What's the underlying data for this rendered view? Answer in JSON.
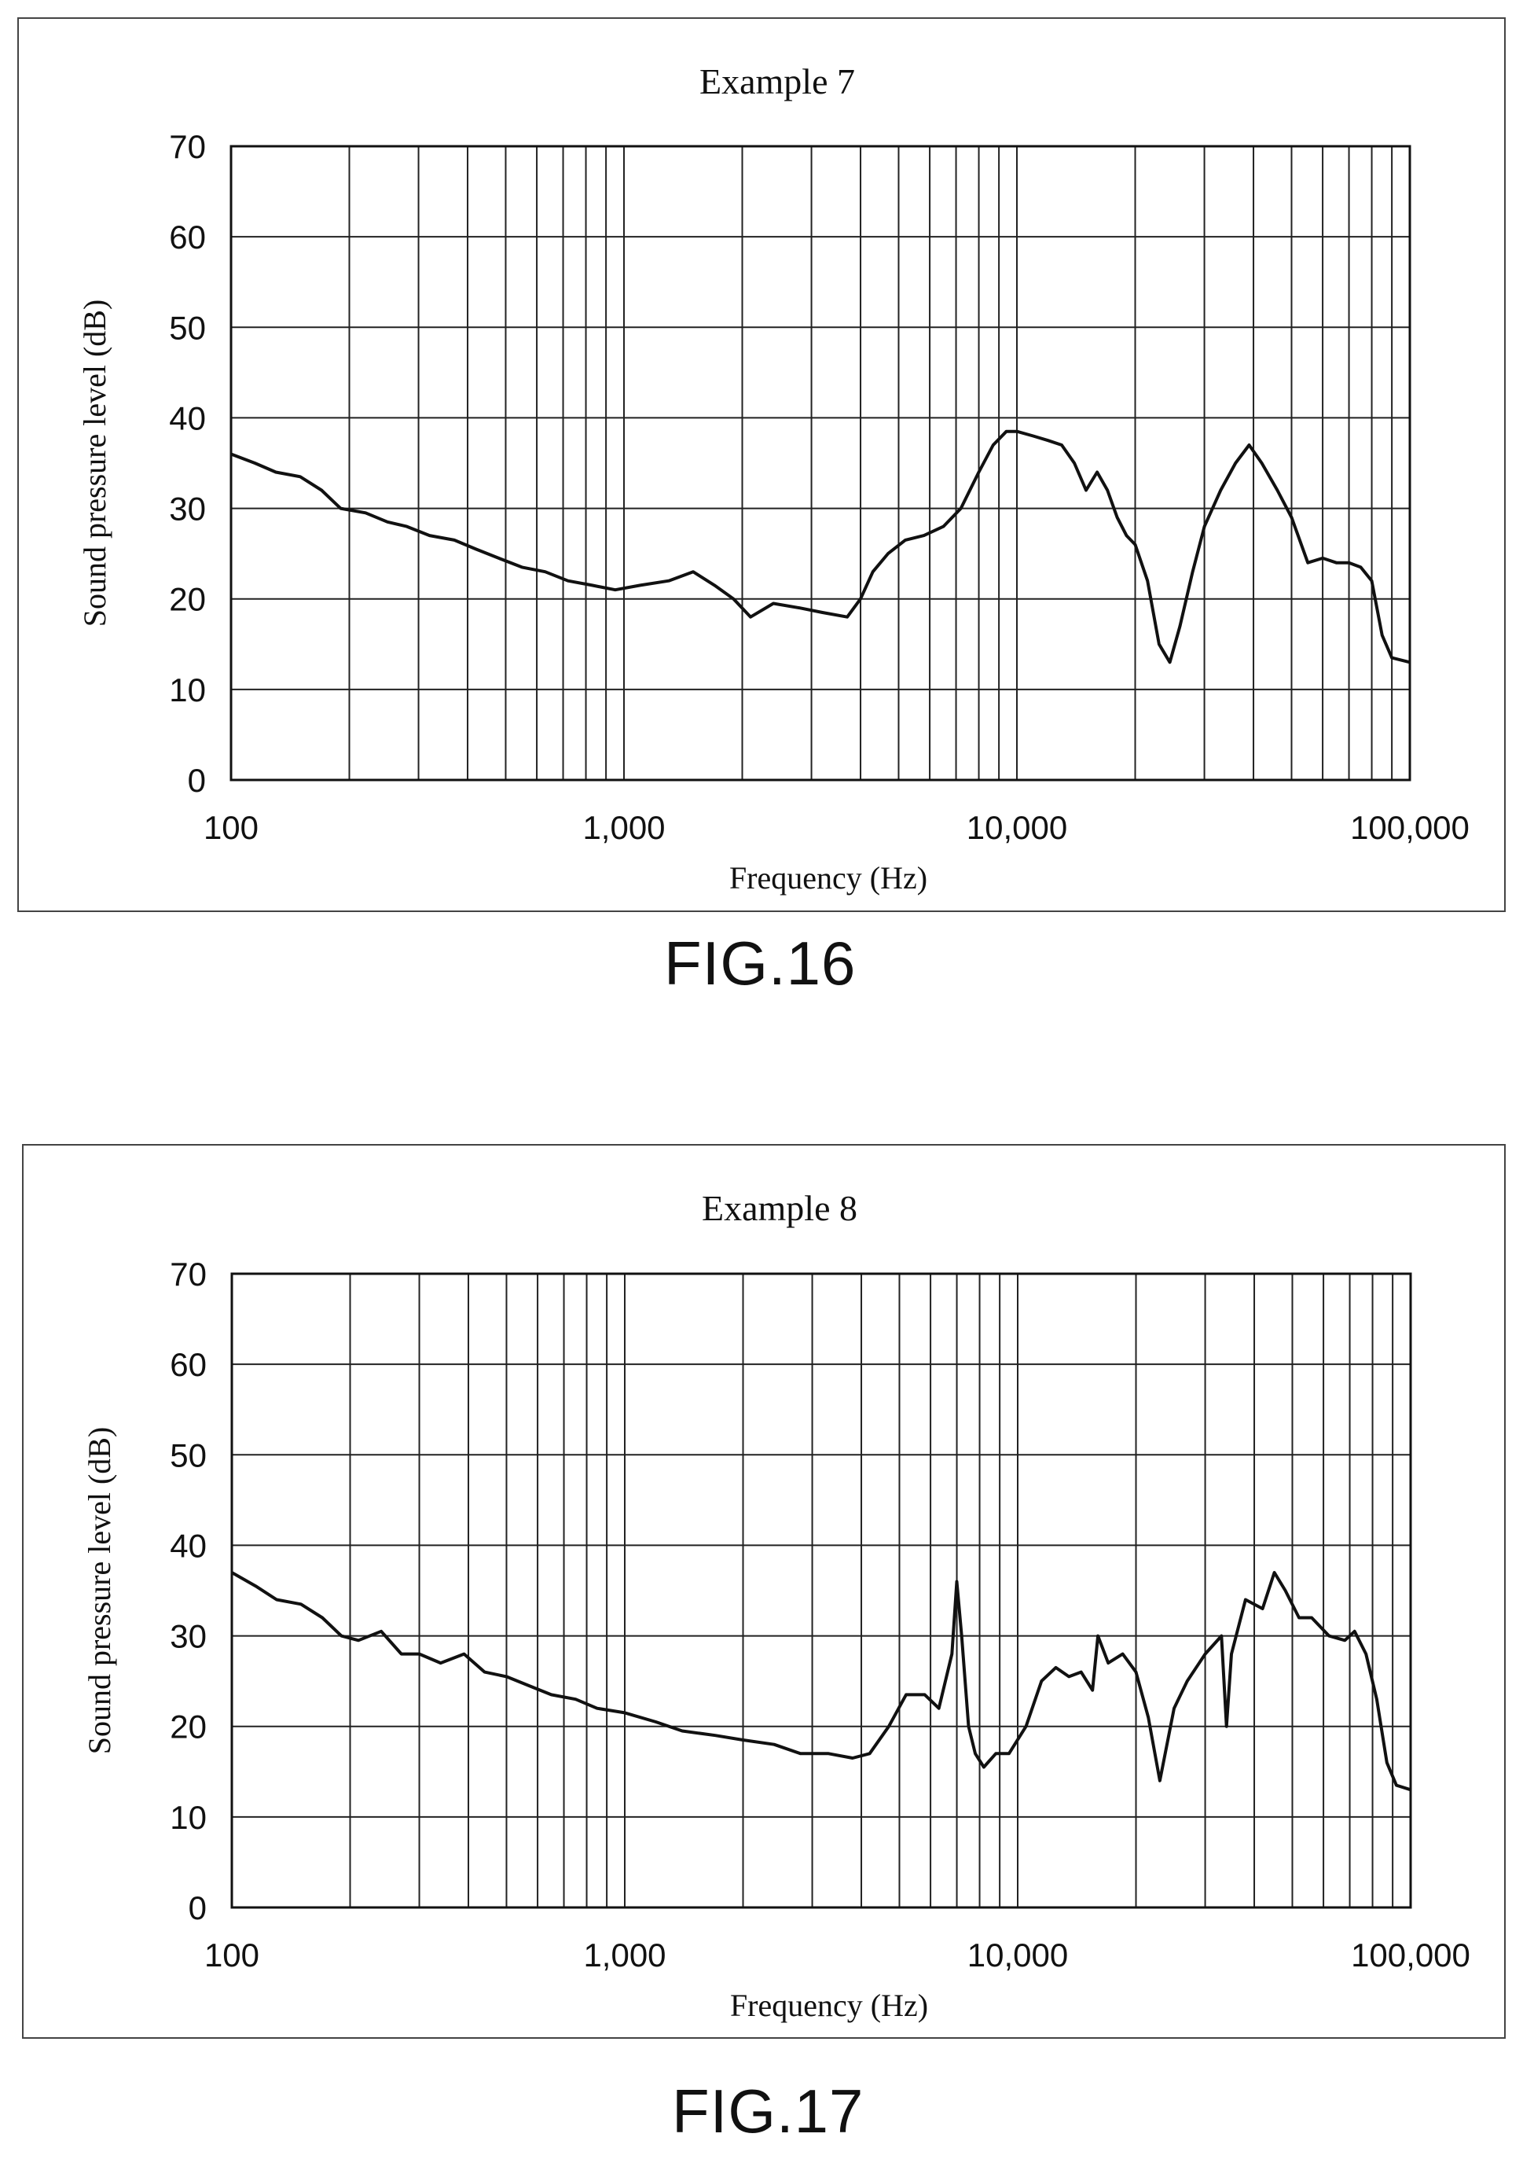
{
  "chart_data": [
    {
      "type": "line",
      "title": "Example 7",
      "xlabel": "Frequency (Hz)",
      "ylabel": "Sound pressure level (dB)",
      "xscale": "log",
      "xlim": [
        100,
        100000
      ],
      "ylim": [
        0,
        70
      ],
      "xticks": [
        100,
        1000,
        10000,
        100000
      ],
      "xtick_labels": [
        "100",
        "1,000",
        "10,000",
        "100,000"
      ],
      "yticks": [
        0,
        10,
        20,
        30,
        40,
        50,
        60,
        70
      ],
      "ytick_labels": [
        "0",
        "10",
        "20",
        "30",
        "40",
        "50",
        "60",
        "70"
      ],
      "grid": true,
      "series": [
        {
          "x": [
            100,
            115,
            130,
            150,
            170,
            190,
            220,
            250,
            280,
            320,
            370,
            420,
            480,
            550,
            630,
            720,
            830,
            950,
            1100,
            1300,
            1500,
            1700,
            1900,
            2100,
            2400,
            2800,
            3200,
            3700,
            4000,
            4300,
            4700,
            5200,
            5800,
            6500,
            7200,
            8000,
            8700,
            9400,
            10000,
            11000,
            12000,
            13000,
            14000,
            15000,
            16000,
            17000,
            18000,
            19000,
            20000,
            21500,
            23000,
            24500,
            26000,
            28000,
            30000,
            33000,
            36000,
            39000,
            42000,
            46000,
            50000,
            55000,
            60000,
            65000,
            70000,
            75000,
            80000,
            85000,
            90000,
            100000
          ],
          "y": [
            36,
            35,
            34,
            33.5,
            32,
            30,
            29.5,
            28.5,
            28,
            27,
            26.5,
            25.5,
            24.5,
            23.5,
            23,
            22,
            21.5,
            21,
            21.5,
            22,
            23,
            21.5,
            20,
            18,
            19.5,
            19,
            18.5,
            18,
            20,
            23,
            25,
            26.5,
            27,
            28,
            30,
            34,
            37,
            38.5,
            38.5,
            38,
            37.5,
            37,
            35,
            32,
            34,
            32,
            29,
            27,
            26,
            22,
            15,
            13,
            17,
            23,
            28,
            32,
            35,
            37,
            35,
            32,
            29,
            24,
            24.5,
            24,
            24,
            23.5,
            22,
            16,
            13.5,
            13
          ]
        }
      ]
    },
    {
      "type": "line",
      "title": "Example 8",
      "xlabel": "Frequency (Hz)",
      "ylabel": "Sound pressure level (dB)",
      "xscale": "log",
      "xlim": [
        100,
        100000
      ],
      "ylim": [
        0,
        70
      ],
      "xticks": [
        100,
        1000,
        10000,
        100000
      ],
      "xtick_labels": [
        "100",
        "1,000",
        "10,000",
        "100,000"
      ],
      "yticks": [
        0,
        10,
        20,
        30,
        40,
        50,
        60,
        70
      ],
      "ytick_labels": [
        "0",
        "10",
        "20",
        "30",
        "40",
        "50",
        "60",
        "70"
      ],
      "grid": true,
      "series": [
        {
          "x": [
            100,
            115,
            130,
            150,
            170,
            190,
            210,
            240,
            270,
            300,
            340,
            390,
            440,
            500,
            570,
            650,
            750,
            850,
            1000,
            1200,
            1400,
            1700,
            2000,
            2400,
            2800,
            3300,
            3800,
            4200,
            4700,
            5200,
            5800,
            6300,
            6800,
            7000,
            7200,
            7500,
            7800,
            8200,
            8800,
            9500,
            10500,
            11500,
            12500,
            13500,
            14500,
            15500,
            16000,
            17000,
            18500,
            20000,
            21500,
            23000,
            25000,
            27000,
            30000,
            33000,
            34000,
            35000,
            38000,
            42000,
            45000,
            48000,
            52000,
            56000,
            62000,
            68000,
            72000,
            77000,
            82000,
            87000,
            92000,
            100000
          ],
          "y": [
            37,
            35.5,
            34,
            33.5,
            32,
            30,
            29.5,
            30.5,
            28,
            28,
            27,
            28,
            26,
            25.5,
            24.5,
            23.5,
            23,
            22,
            21.5,
            20.5,
            19.5,
            19,
            18.5,
            18,
            17,
            17,
            16.5,
            17,
            20,
            23.5,
            23.5,
            22,
            28,
            36,
            30,
            20,
            17,
            15.5,
            17,
            17,
            20,
            25,
            26.5,
            25.5,
            26,
            24,
            30,
            27,
            28,
            26,
            21,
            14,
            22,
            25,
            28,
            30,
            20,
            28,
            34,
            33,
            37,
            35,
            32,
            32,
            30,
            29.5,
            30.5,
            28,
            23,
            16,
            13.5,
            13
          ]
        }
      ]
    }
  ],
  "captions": [
    "FIG.16",
    "FIG.17"
  ]
}
